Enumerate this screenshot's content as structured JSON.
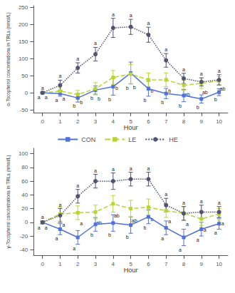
{
  "chart_data": [
    {
      "type": "line",
      "x": [
        0,
        1,
        2,
        3,
        4,
        5,
        6,
        7,
        8,
        9,
        10
      ],
      "xlim": [
        -0.5,
        10.5
      ],
      "xticks": [
        0,
        1,
        2,
        3,
        4,
        5,
        6,
        7,
        8,
        9,
        10
      ],
      "xlabel": "Hour",
      "ylabel": "α-Tocopherol concentrations in TRLs (nmol/L)",
      "ylim": [
        -58,
        255
      ],
      "yticks": [
        -50,
        0,
        50,
        100,
        150,
        200,
        250
      ],
      "grid": false,
      "legend": "lower center",
      "series": [
        {
          "name": "CON",
          "line_style": "solid",
          "marker": "square",
          "values": [
            0,
            -2,
            -15,
            8,
            18,
            58,
            12,
            -2,
            -8,
            -18,
            2
          ],
          "errors": [
            2,
            8,
            12,
            12,
            25,
            32,
            22,
            15,
            18,
            12,
            10
          ],
          "labels": [
            "a",
            "a",
            "b",
            "b",
            "b",
            "b",
            "b",
            "b",
            "b",
            "b",
            "b"
          ]
        },
        {
          "name": "LE",
          "line_style": "dashed",
          "marker": "square",
          "values": [
            0,
            5,
            -5,
            12,
            45,
            55,
            38,
            38,
            22,
            28,
            35
          ],
          "errors": [
            2,
            10,
            12,
            18,
            20,
            28,
            20,
            20,
            15,
            15,
            12
          ],
          "labels": [
            "a",
            "a",
            "b",
            "b",
            "b",
            "b",
            "b",
            "b",
            "ab",
            "ab",
            "ab"
          ]
        },
        {
          "name": "HE",
          "line_style": "dotted",
          "marker": "circle",
          "values": [
            0,
            22,
            73,
            113,
            190,
            193,
            170,
            95,
            42,
            32,
            38
          ],
          "errors": [
            2,
            15,
            15,
            20,
            28,
            22,
            22,
            20,
            15,
            12,
            15
          ],
          "labels": [
            "a",
            "a",
            "a",
            "a",
            "a",
            "a",
            "a",
            "a",
            "a",
            "a",
            "a"
          ]
        }
      ]
    },
    {
      "type": "line",
      "x": [
        0,
        1,
        2,
        3,
        4,
        5,
        6,
        7,
        8,
        9,
        10
      ],
      "xlim": [
        -0.5,
        10.5
      ],
      "xticks": [
        0,
        1,
        2,
        3,
        4,
        5,
        6,
        7,
        8,
        9,
        10
      ],
      "xlabel": "Hour",
      "ylabel": "γ-Tocopherol concentrations in TRLs (nmol/L)",
      "ylim": [
        -48,
        108
      ],
      "yticks": [
        -40,
        -20,
        0,
        20,
        40,
        60,
        80,
        100
      ],
      "grid": false,
      "series": [
        {
          "name": "CON",
          "line_style": "solid",
          "marker": "square",
          "values": [
            0,
            -10,
            -22,
            -3,
            -1,
            -4,
            8,
            -8,
            -22,
            -10,
            -2
          ],
          "errors": [
            2,
            8,
            10,
            10,
            12,
            12,
            10,
            10,
            12,
            10,
            8
          ],
          "labels": [
            "a",
            "a",
            "a",
            "b",
            "b",
            "b",
            "b",
            "a",
            "a",
            "a",
            "a"
          ]
        },
        {
          "name": "LE",
          "line_style": "dashed",
          "marker": "square",
          "values": [
            0,
            12,
            14,
            15,
            27,
            20,
            22,
            17,
            13,
            5,
            12
          ],
          "errors": [
            2,
            10,
            10,
            10,
            12,
            12,
            12,
            10,
            10,
            10,
            8
          ],
          "labels": [
            "a",
            "a",
            "a",
            "ab",
            "ab",
            "ab",
            "b",
            "a",
            "a",
            "a",
            "a"
          ]
        },
        {
          "name": "HE",
          "line_style": "dotted",
          "marker": "circle",
          "values": [
            0,
            10,
            38,
            60,
            60,
            63,
            63,
            25,
            13,
            15,
            15
          ],
          "errors": [
            2,
            10,
            10,
            10,
            12,
            10,
            10,
            10,
            10,
            10,
            8
          ],
          "labels": [
            "a",
            "a",
            "a",
            "a",
            "a",
            "a",
            "a",
            "a",
            "a",
            "a",
            "a"
          ]
        }
      ]
    }
  ]
}
